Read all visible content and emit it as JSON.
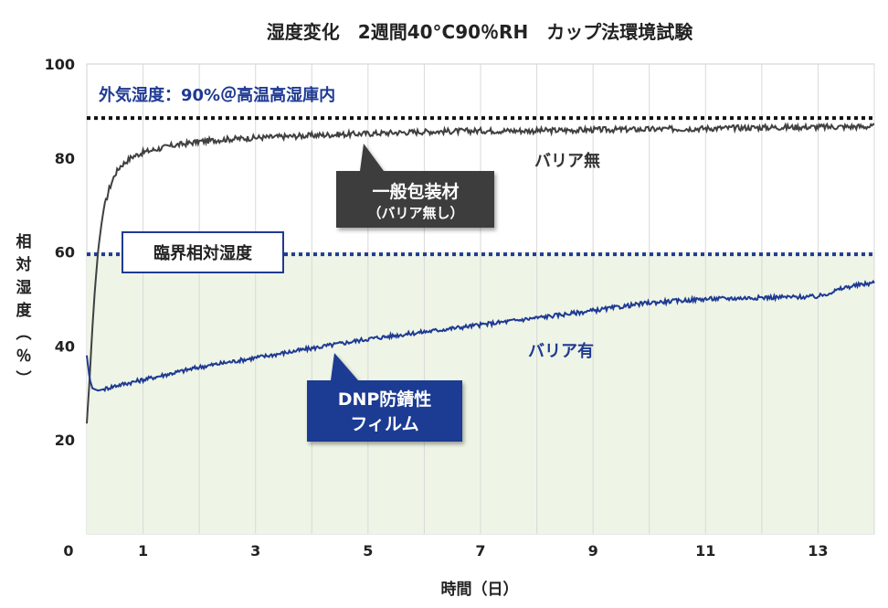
{
  "chart_data": {
    "type": "line",
    "title": "湿度変化　2週間40°C90％RH　カップ法環境試験",
    "xlabel": "時間（日）",
    "ylabel_chars": [
      "相",
      "対",
      "湿",
      "度",
      "︵",
      "％",
      "︶"
    ],
    "xlim": [
      0,
      14
    ],
    "ylim": [
      0,
      100
    ],
    "x_ticks": [
      0,
      1,
      3,
      5,
      7,
      9,
      11,
      13
    ],
    "y_ticks": [
      20,
      40,
      60,
      80,
      100
    ],
    "grid": "vertical",
    "region_fill": {
      "from": 0,
      "to": 60,
      "color": "#eef5e6"
    },
    "reference_lines": [
      {
        "label": "外気湿度：90%＠高温高湿庫内",
        "y": 88.5,
        "color": "#111111"
      },
      {
        "label": "臨界相対湿度",
        "y": 59.5,
        "color": "#1f3a93"
      }
    ],
    "series": [
      {
        "name": "バリア無",
        "color": "#404040",
        "x": [
          0,
          0.05,
          0.1,
          0.15,
          0.2,
          0.25,
          0.3,
          0.4,
          0.5,
          0.6,
          0.8,
          1,
          1.5,
          2,
          2.5,
          3,
          4,
          5,
          6,
          7,
          8,
          9,
          10,
          11,
          12,
          13,
          14
        ],
        "y": [
          23.5,
          33,
          44,
          53,
          60,
          65,
          69,
          73.5,
          76.5,
          78.3,
          80.2,
          81.2,
          82.6,
          83.5,
          84,
          84.3,
          84.8,
          85.2,
          85.6,
          85.8,
          85.8,
          86,
          86.1,
          86.3,
          86.5,
          86.6,
          86.7
        ]
      },
      {
        "name": "バリア有",
        "color": "#1f3a93",
        "x": [
          0,
          0.05,
          0.1,
          0.2,
          0.3,
          0.5,
          1,
          2,
          3,
          4,
          5,
          6,
          7,
          8,
          9,
          10,
          11,
          12,
          13,
          13.5,
          14
        ],
        "y": [
          38,
          33,
          31,
          30.5,
          30.8,
          31.5,
          32.8,
          35.5,
          37.5,
          39.5,
          41.5,
          43,
          44.5,
          46,
          47.5,
          49.2,
          50,
          50.3,
          50.5,
          52.5,
          53.5
        ]
      }
    ],
    "annotations": {
      "no_barrier_callout": {
        "lines": [
          "一般包装材",
          "（バリア無し）"
        ]
      },
      "barrier_callout": {
        "lines": [
          "DNP防錆性",
          "フィルム"
        ]
      }
    }
  }
}
